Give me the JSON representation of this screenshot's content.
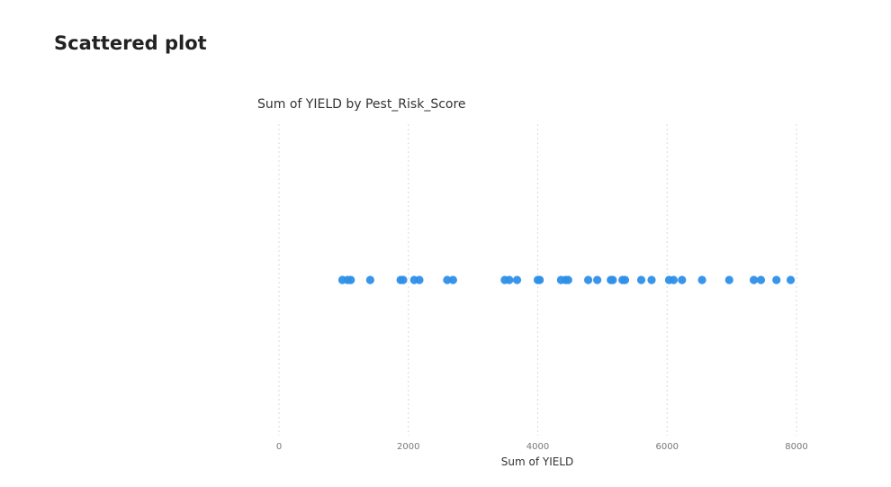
{
  "page": {
    "title": "Scattered plot"
  },
  "chart_data": {
    "type": "scatter",
    "title": "Sum of YIELD by Pest_Risk_Score",
    "xlabel": "Sum of YIELD",
    "ylabel": "",
    "xlim": [
      0,
      8000
    ],
    "xticks": [
      0,
      2000,
      4000,
      6000,
      8000
    ],
    "tick_labels": [
      "0",
      "2000",
      "4000",
      "6000",
      "8000"
    ],
    "grid": true,
    "point_color": "#2e8fe8",
    "series": [
      {
        "name": "Sum of YIELD",
        "x": [
          980,
          1060,
          1110,
          1410,
          1880,
          1920,
          2090,
          2170,
          2600,
          2690,
          3490,
          3560,
          3680,
          4000,
          4030,
          4360,
          4430,
          4470,
          4780,
          4920,
          5130,
          5160,
          5310,
          5350,
          5600,
          5760,
          6030,
          6100,
          6230,
          6540,
          6960,
          7340,
          7450,
          7690,
          7910
        ]
      }
    ]
  }
}
